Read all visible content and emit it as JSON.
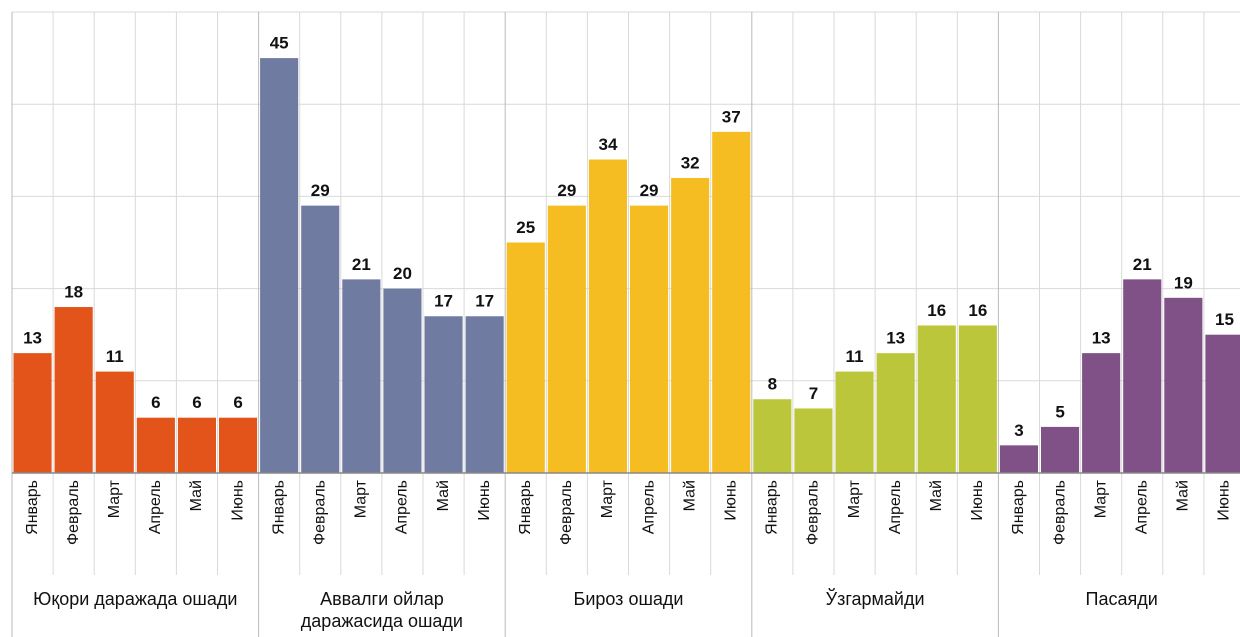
{
  "chart_data": {
    "type": "bar",
    "categories": [
      "Январь",
      "Февраль",
      "Март",
      "Апрель",
      "Май",
      "Июнь"
    ],
    "series": [
      {
        "name": "Юқори даражада ошади",
        "color": "#e2541a",
        "values": [
          13,
          18,
          11,
          6,
          6,
          6
        ]
      },
      {
        "name": "Аввалги ойлар даражасида ошади",
        "color": "#6f7ba0",
        "values": [
          45,
          29,
          21,
          20,
          17,
          17
        ]
      },
      {
        "name": "Бироз ошади",
        "color": "#f5bd22",
        "values": [
          25,
          29,
          34,
          29,
          32,
          37
        ]
      },
      {
        "name": "Ўзгармайди",
        "color": "#bcc63a",
        "values": [
          8,
          7,
          11,
          13,
          16,
          16
        ]
      },
      {
        "name": "Пасаяди",
        "color": "#7f5186",
        "values": [
          3,
          5,
          13,
          21,
          19,
          15
        ]
      }
    ],
    "ylim": [
      0,
      50
    ],
    "yticks": [
      0,
      10,
      20,
      30,
      40,
      50
    ],
    "grid": true
  }
}
